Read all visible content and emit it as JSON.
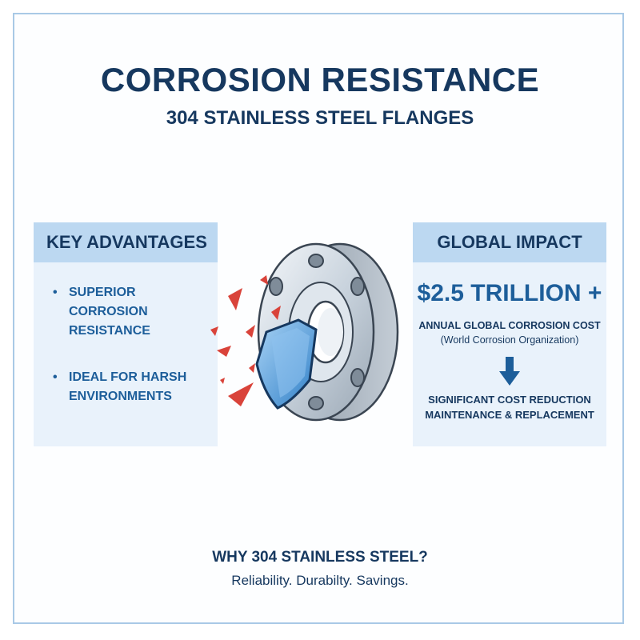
{
  "header": {
    "title": "CORROSION RESISTANCE",
    "subtitle": "304 STAINLESS STEEL FLANGES"
  },
  "advantages": {
    "heading": "KEY ADVANTAGES",
    "items": [
      {
        "bullet": "•",
        "text": "SUPERIOR CORROSION RESISTANCE"
      },
      {
        "bullet": "•",
        "text": "IDEAL FOR HARSH ENVIRONMENTS"
      }
    ]
  },
  "impact": {
    "heading": "GLOBAL IMPACT",
    "figure": "$2.5 TRILLION +",
    "label": "ANNUAL GLOBAL CORROSION COST",
    "source": "(World Corrosion Organization)",
    "reduction_line1": "SIGNIFICANT COST REDUCTION",
    "reduction_line2": "MAINTENANCE & REPLACEMENT"
  },
  "footer": {
    "question": "WHY 304 STAINLESS STEEL?",
    "tagline": "Reliability. Durabilty. Savings."
  },
  "colors": {
    "navy": "#16385f",
    "accent_blue": "#1d5e9a",
    "panel_bg": "#e9f2fb",
    "panel_header": "#bcd8f1",
    "rust_red": "#d9433a"
  },
  "icons": {
    "flange": "flange-illustration",
    "shield": "shield-icon",
    "arrow": "arrow-down-icon"
  }
}
